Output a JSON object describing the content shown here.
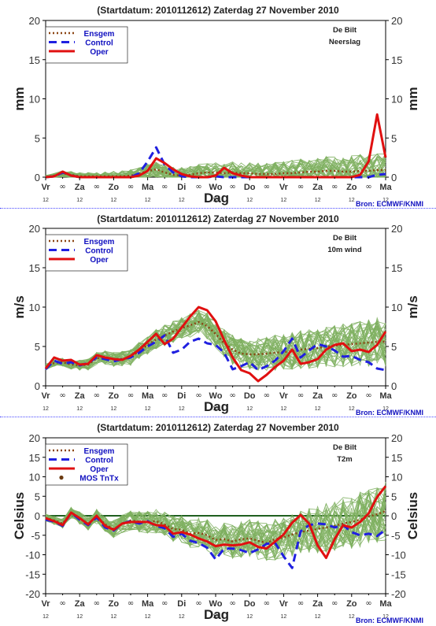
{
  "source": "Bron: ECMWF/KNMI",
  "colors": {
    "ensemble_member": "#7fb060",
    "ensgem": "#8b4513",
    "control": "#2020e0",
    "oper": "#e01010",
    "mos": "#6b3a10",
    "zero_line": "#1f5f1f",
    "separator": "#4a4aff",
    "legend_text": "#1010c0"
  },
  "x_axis": {
    "title": "Dag",
    "day_labels": [
      "Vr",
      "Za",
      "Zo",
      "Ma",
      "Di",
      "Wo",
      "Do",
      "Vr",
      "Za",
      "Zo",
      "Ma"
    ],
    "noon_label": "12",
    "infinity_label": "∞"
  },
  "chart_data": [
    {
      "type": "line",
      "title": "(Startdatum: 2010112612)   Zaterdag  27 November  2010",
      "station": "De Bilt",
      "variable": "Neerslag",
      "ylabel": "mm",
      "ylim": [
        0,
        20
      ],
      "yticks": [
        0,
        5,
        10,
        15,
        20
      ],
      "legend": [
        "Ensgem",
        "Control",
        "Oper"
      ],
      "x_hours": [
        0,
        6,
        12,
        18,
        24,
        30,
        36,
        42,
        48,
        54,
        60,
        66,
        72,
        78,
        84,
        90,
        96,
        102,
        108,
        114,
        120,
        126,
        132,
        138,
        144,
        150,
        156,
        162,
        168,
        174,
        180,
        186,
        192,
        198,
        204,
        210,
        216,
        222,
        228,
        234,
        240
      ],
      "series": [
        {
          "name": "Ensgem",
          "values": [
            0,
            0.2,
            0.5,
            0.3,
            0.1,
            0.1,
            0.1,
            0.1,
            0.1,
            0.1,
            0.2,
            0.4,
            0.8,
            1.0,
            0.6,
            0.3,
            0.2,
            0.3,
            0.5,
            0.6,
            0.6,
            0.5,
            0.6,
            0.5,
            0.5,
            0.4,
            0.4,
            0.4,
            0.5,
            0.5,
            0.6,
            0.7,
            0.7,
            0.8,
            0.8,
            0.7,
            0.7,
            0.8,
            0.8,
            0.9,
            0.9
          ]
        },
        {
          "name": "Control",
          "values": [
            0,
            0.1,
            0.6,
            0.2,
            0,
            0,
            0,
            0,
            0,
            0,
            0,
            0.5,
            2.0,
            3.8,
            1.6,
            0.6,
            0.1,
            0,
            0,
            0,
            0.1,
            0,
            0,
            0,
            0,
            0,
            0,
            0,
            0,
            0,
            0,
            0,
            0,
            0,
            0,
            0,
            0,
            0,
            0,
            0.3,
            0.4
          ]
        },
        {
          "name": "Oper",
          "values": [
            0,
            0.1,
            0.7,
            0.2,
            0,
            0,
            0,
            0,
            0,
            0,
            0,
            0.2,
            0.8,
            2.4,
            1.8,
            1.0,
            0.4,
            0.1,
            0,
            0,
            0.2,
            1.2,
            0.5,
            0.2,
            0,
            0,
            0,
            0,
            0,
            0,
            0,
            0,
            0,
            0,
            0,
            0,
            0,
            0.3,
            2.0,
            8.0,
            2.5
          ]
        }
      ]
    },
    {
      "type": "line",
      "title": "(Startdatum: 2010112612)   Zaterdag  27 November  2010",
      "station": "De Bilt",
      "variable": "10m wind",
      "ylabel": "m/s",
      "ylim": [
        0,
        20
      ],
      "yticks": [
        0,
        5,
        10,
        15,
        20
      ],
      "legend": [
        "Ensgem",
        "Control",
        "Oper"
      ],
      "x_hours": [
        0,
        6,
        12,
        18,
        24,
        30,
        36,
        42,
        48,
        54,
        60,
        66,
        72,
        78,
        84,
        90,
        96,
        102,
        108,
        114,
        120,
        126,
        132,
        138,
        144,
        150,
        156,
        162,
        168,
        174,
        180,
        186,
        192,
        198,
        204,
        210,
        216,
        222,
        228,
        234,
        240
      ],
      "series": [
        {
          "name": "Ensgem",
          "values": [
            2.4,
            2.9,
            3.0,
            2.7,
            2.6,
            2.7,
            3.5,
            3.6,
            3.4,
            3.4,
            3.6,
            4.4,
            5.2,
            5.9,
            6.4,
            6.9,
            7.3,
            7.7,
            8.1,
            7.6,
            6.6,
            5.4,
            4.6,
            4.1,
            4.0,
            4.0,
            4.1,
            4.2,
            4.3,
            4.4,
            4.6,
            4.7,
            4.8,
            5.0,
            5.1,
            5.2,
            5.3,
            5.4,
            5.5,
            5.6,
            5.6
          ]
        },
        {
          "name": "Control",
          "values": [
            2.1,
            3.2,
            2.8,
            3.0,
            2.6,
            2.9,
            3.6,
            3.4,
            3.1,
            3.4,
            3.6,
            4.2,
            5.0,
            5.6,
            6.4,
            4.2,
            4.6,
            5.6,
            6.0,
            5.4,
            5.2,
            4.2,
            2.1,
            2.5,
            3.0,
            2.0,
            2.5,
            3.2,
            4.4,
            6.0,
            3.6,
            4.5,
            5.3,
            5.0,
            4.5,
            3.7,
            3.8,
            3.3,
            3.0,
            2.2,
            2.0
          ]
        },
        {
          "name": "Oper",
          "values": [
            2.2,
            3.6,
            3.2,
            3.3,
            2.7,
            2.8,
            3.9,
            3.6,
            3.4,
            3.3,
            3.8,
            4.6,
            5.6,
            6.6,
            5.3,
            6.0,
            7.4,
            8.8,
            10.0,
            9.6,
            8.2,
            5.8,
            3.6,
            2.0,
            1.6,
            0.6,
            1.4,
            2.4,
            3.2,
            4.6,
            2.8,
            3.0,
            3.4,
            4.6,
            5.2,
            5.4,
            4.4,
            4.6,
            4.3,
            5.2,
            6.9
          ]
        }
      ]
    },
    {
      "type": "line",
      "title": "(Startdatum: 2010112612)   Zaterdag  27 November  2010",
      "station": "De Bilt",
      "variable": "T2m",
      "ylabel": "Celsius",
      "ylim": [
        -20,
        20
      ],
      "yticks": [
        -20,
        -15,
        -10,
        -5,
        0,
        5,
        10,
        15,
        20
      ],
      "legend": [
        "Ensgem",
        "Control",
        "Oper",
        "MOS TnTx"
      ],
      "x_hours": [
        0,
        6,
        12,
        18,
        24,
        30,
        36,
        42,
        48,
        54,
        60,
        66,
        72,
        78,
        84,
        90,
        96,
        102,
        108,
        114,
        120,
        126,
        132,
        138,
        144,
        150,
        156,
        162,
        168,
        174,
        180,
        186,
        192,
        198,
        204,
        210,
        216,
        222,
        228,
        234,
        240
      ],
      "series": [
        {
          "name": "Ensgem",
          "values": [
            -0.5,
            -1.2,
            -2.0,
            0.8,
            -0.6,
            -2.0,
            -0.2,
            -2.2,
            -3.4,
            -2.2,
            -1.2,
            -1.5,
            -1.6,
            -1.4,
            -2.2,
            -3.4,
            -3.6,
            -4.6,
            -4.4,
            -5.0,
            -6.2,
            -6.0,
            -6.6,
            -6.0,
            -5.8,
            -6.4,
            -7.0,
            -6.0,
            -5.6,
            -4.8,
            -4.2,
            -3.8,
            -3.4,
            -3.0,
            -2.6,
            -2.0,
            -1.6,
            -1.0,
            -0.2,
            0.4,
            1.2
          ]
        },
        {
          "name": "Control",
          "values": [
            -1.0,
            -1.5,
            -2.6,
            0.8,
            -1.0,
            -2.4,
            -0.4,
            -3.0,
            -3.8,
            -2.0,
            -1.4,
            -2.0,
            -1.4,
            -2.6,
            -3.2,
            -5.4,
            -4.6,
            -6.4,
            -7.0,
            -8.2,
            -11.2,
            -8.4,
            -8.4,
            -8.8,
            -9.6,
            -8.6,
            -7.2,
            -7.0,
            -10.4,
            -13.4,
            -4.0,
            -2.4,
            -2.0,
            -2.2,
            -3.0,
            -2.4,
            -4.2,
            -5.0,
            -4.6,
            -5.2,
            -3.6
          ]
        },
        {
          "name": "Oper",
          "values": [
            -0.6,
            -1.4,
            -2.4,
            0.8,
            -0.6,
            -2.2,
            0.0,
            -2.6,
            -3.6,
            -2.0,
            -1.6,
            -1.6,
            -1.6,
            -2.4,
            -2.6,
            -4.6,
            -4.2,
            -4.8,
            -5.8,
            -6.6,
            -7.8,
            -7.4,
            -7.6,
            -7.4,
            -6.8,
            -8.0,
            -8.4,
            -6.6,
            -4.8,
            -1.8,
            0.2,
            -2.0,
            -7.6,
            -10.8,
            -6.0,
            -2.4,
            -3.0,
            -1.6,
            0.6,
            4.8,
            7.6
          ]
        },
        {
          "name": "MOS TnTx",
          "values": []
        }
      ]
    }
  ]
}
